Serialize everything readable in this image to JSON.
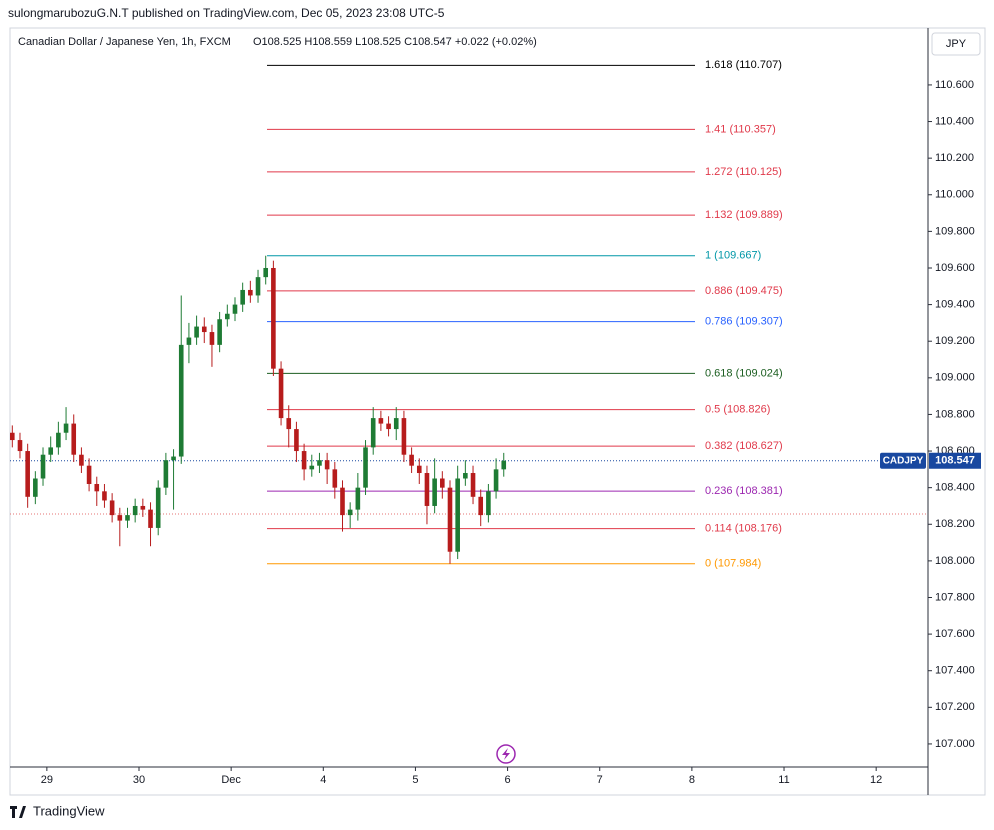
{
  "header": {
    "publisher": "sulongmarubozuG.N.T published on TradingView.com, Dec 05, 2023 23:08 UTC-5",
    "instrument": "Canadian Dollar / Japanese Yen, 1h, FXCM",
    "ohlc": "O108.525 H108.559 L108.525 C108.547 +0.022 (+0.02%)",
    "currency_button": "JPY",
    "brand": "TradingView"
  },
  "chart_data": {
    "type": "candlestick",
    "symbol_tag": "CADJPY",
    "up_color": "#1e7b34",
    "down_color": "#b71c1c",
    "x": [
      -9,
      -7,
      -5,
      -3,
      -1,
      1,
      3,
      5,
      7,
      9,
      11,
      13,
      15,
      17,
      19,
      21,
      23,
      25,
      27,
      29,
      31,
      33,
      35,
      37,
      39,
      41,
      43,
      45,
      47,
      49,
      51,
      53,
      55,
      57,
      59,
      61,
      63,
      65,
      67,
      69,
      71,
      73,
      75,
      77,
      79,
      81,
      83,
      85,
      87,
      89,
      91,
      93,
      95,
      97,
      99,
      101,
      103,
      105,
      107,
      109,
      111,
      113,
      115,
      117,
      119
    ],
    "open": [
      108.7,
      108.66,
      108.6,
      108.35,
      108.45,
      108.58,
      108.62,
      108.7,
      108.75,
      108.58,
      108.52,
      108.42,
      108.38,
      108.33,
      108.25,
      108.22,
      108.25,
      108.3,
      108.28,
      108.18,
      108.4,
      108.55,
      108.57,
      109.18,
      109.22,
      109.28,
      109.25,
      109.18,
      109.32,
      109.35,
      109.4,
      109.48,
      109.45,
      109.55,
      109.6,
      109.05,
      108.78,
      108.72,
      108.6,
      108.5,
      108.52,
      108.55,
      108.5,
      108.4,
      108.25,
      108.28,
      108.4,
      108.62,
      108.78,
      108.75,
      108.72,
      108.78,
      108.58,
      108.52,
      108.48,
      108.3,
      108.45,
      108.4,
      108.05,
      108.45,
      108.48,
      108.35,
      108.25,
      108.38,
      108.5
    ],
    "high": [
      108.74,
      108.7,
      108.64,
      108.49,
      108.62,
      108.68,
      108.76,
      108.84,
      108.8,
      108.62,
      108.56,
      108.46,
      108.42,
      108.37,
      108.29,
      108.29,
      108.34,
      108.34,
      108.32,
      108.44,
      108.59,
      108.61,
      109.45,
      109.3,
      109.34,
      109.33,
      109.29,
      109.36,
      109.4,
      109.44,
      109.52,
      109.53,
      109.59,
      109.667,
      109.64,
      109.09,
      108.85,
      108.76,
      108.64,
      108.58,
      108.59,
      108.59,
      108.54,
      108.44,
      108.32,
      108.48,
      108.66,
      108.84,
      108.82,
      108.79,
      108.84,
      108.82,
      108.62,
      108.56,
      108.52,
      108.56,
      108.49,
      108.44,
      108.52,
      108.55,
      108.52,
      108.39,
      108.42,
      108.56,
      108.59
    ],
    "low": [
      108.62,
      108.56,
      108.29,
      108.31,
      108.41,
      108.54,
      108.58,
      108.66,
      108.54,
      108.48,
      108.38,
      108.3,
      108.29,
      108.21,
      108.08,
      108.18,
      108.21,
      108.24,
      108.08,
      108.14,
      108.36,
      108.28,
      108.53,
      109.08,
      109.18,
      109.19,
      109.06,
      109.14,
      109.28,
      109.31,
      109.36,
      109.41,
      109.41,
      109.51,
      109.01,
      108.74,
      108.62,
      108.54,
      108.44,
      108.46,
      108.48,
      108.42,
      108.34,
      108.16,
      108.18,
      108.22,
      108.36,
      108.58,
      108.71,
      108.68,
      108.66,
      108.54,
      108.48,
      108.42,
      108.2,
      108.26,
      108.34,
      107.984,
      108.01,
      108.41,
      108.31,
      108.19,
      108.21,
      108.34,
      108.46
    ],
    "close": [
      108.66,
      108.6,
      108.35,
      108.45,
      108.58,
      108.62,
      108.7,
      108.75,
      108.58,
      108.52,
      108.42,
      108.38,
      108.33,
      108.25,
      108.22,
      108.25,
      108.3,
      108.28,
      108.18,
      108.4,
      108.55,
      108.57,
      109.18,
      109.22,
      109.28,
      109.25,
      109.18,
      109.32,
      109.35,
      109.4,
      109.48,
      109.45,
      109.55,
      109.6,
      109.05,
      108.78,
      108.72,
      108.6,
      108.5,
      108.52,
      108.55,
      108.5,
      108.4,
      108.25,
      108.28,
      108.4,
      108.62,
      108.78,
      108.75,
      108.72,
      108.78,
      108.58,
      108.52,
      108.48,
      108.3,
      108.45,
      108.4,
      108.05,
      108.45,
      108.48,
      108.35,
      108.25,
      108.38,
      108.5,
      108.547
    ],
    "fib_levels": [
      {
        "label": "1.618 (110.707)",
        "value": 110.707,
        "color": "#000000"
      },
      {
        "label": "1.41 (110.357)",
        "value": 110.357,
        "color": "#e0394a"
      },
      {
        "label": "1.272 (110.125)",
        "value": 110.125,
        "color": "#e0394a"
      },
      {
        "label": "1.132 (109.889)",
        "value": 109.889,
        "color": "#e0394a"
      },
      {
        "label": "1 (109.667)",
        "value": 109.667,
        "color": "#0097a7"
      },
      {
        "label": "0.886 (109.475)",
        "value": 109.475,
        "color": "#e0394a"
      },
      {
        "label": "0.786 (109.307)",
        "value": 109.307,
        "color": "#2962ff"
      },
      {
        "label": "0.618 (109.024)",
        "value": 109.024,
        "color": "#1b5e20"
      },
      {
        "label": "0.5 (108.826)",
        "value": 108.826,
        "color": "#e0394a"
      },
      {
        "label": "0.382 (108.627)",
        "value": 108.627,
        "color": "#e0394a"
      },
      {
        "label": "0.236 (108.381)",
        "value": 108.381,
        "color": "#9c27b0"
      },
      {
        "label": "0.114 (108.176)",
        "value": 108.176,
        "color": "#e0394a"
      },
      {
        "label": "0 (107.984)",
        "value": 107.984,
        "color": "#ff9800"
      }
    ],
    "session_line": {
      "value": 108.256,
      "color": "#e57373"
    },
    "last_price_color": "#1848a0",
    "xlim": [
      -9.6,
      229.5
    ],
    "xticks": [
      {
        "value": 0,
        "label": "29"
      },
      {
        "value": 24,
        "label": "30"
      },
      {
        "value": 48,
        "label": "Dec"
      },
      {
        "value": 72,
        "label": "4"
      },
      {
        "value": 96,
        "label": "5"
      },
      {
        "value": 120,
        "label": "6"
      },
      {
        "value": 144,
        "label": "7"
      },
      {
        "value": 168,
        "label": "8"
      },
      {
        "value": 192,
        "label": "11"
      },
      {
        "value": 216,
        "label": "12"
      }
    ],
    "ylim": [
      106.874,
      110.911
    ],
    "yticks": [
      {
        "value": 107,
        "label": "107.000"
      },
      {
        "value": 107.2,
        "label": "107.200"
      },
      {
        "value": 107.4,
        "label": "107.400"
      },
      {
        "value": 107.6,
        "label": "107.600"
      },
      {
        "value": 107.8,
        "label": "107.800"
      },
      {
        "value": 108,
        "label": "108.000"
      },
      {
        "value": 108.2,
        "label": "108.200"
      },
      {
        "value": 108.4,
        "label": "108.400"
      },
      {
        "value": 108.6,
        "label": "108.600"
      },
      {
        "value": 108.8,
        "label": "108.800"
      },
      {
        "value": 109,
        "label": "109.000"
      },
      {
        "value": 109.2,
        "label": "109.200"
      },
      {
        "value": 109.4,
        "label": "109.400"
      },
      {
        "value": 109.6,
        "label": "109.600"
      },
      {
        "value": 109.8,
        "label": "109.800"
      },
      {
        "value": 110,
        "label": "110.000"
      },
      {
        "value": 110.2,
        "label": "110.200"
      },
      {
        "value": 110.4,
        "label": "110.400"
      },
      {
        "value": 110.6,
        "label": "110.600"
      }
    ]
  }
}
